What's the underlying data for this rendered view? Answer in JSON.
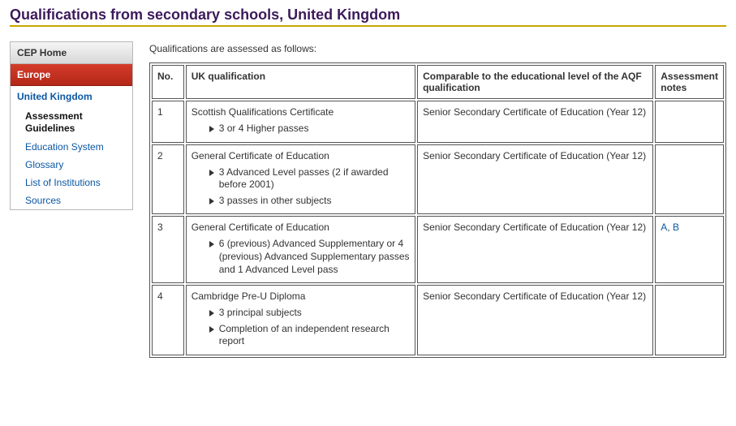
{
  "page": {
    "title": "Qualifications from secondary schools, United Kingdom",
    "intro": "Qualifications are assessed as follows:"
  },
  "sidebar": {
    "home": "CEP Home",
    "section": "Europe",
    "country": "United Kingdom",
    "items": [
      {
        "label": "Assessment Guidelines",
        "active": true
      },
      {
        "label": "Education System"
      },
      {
        "label": "Glossary"
      },
      {
        "label": "List of Institutions"
      },
      {
        "label": "Sources"
      }
    ]
  },
  "table": {
    "headers": {
      "no": "No.",
      "qual": "UK qualification",
      "comp": "Comparable to the educational level of the AQF qualification",
      "notes": "Assessment notes"
    },
    "rows": [
      {
        "no": "1",
        "title": "Scottish Qualifications Certificate",
        "bullets": [
          "3  or 4 Higher passes"
        ],
        "comp": "Senior Secondary Certificate of Education (Year 12)",
        "notes": []
      },
      {
        "no": "2",
        "title": "General Certificate of Education",
        "bullets": [
          "3 Advanced Level passes (2 if awarded before 2001)",
          "3 passes in other subjects"
        ],
        "comp": "Senior Secondary Certificate of Education (Year 12)",
        "notes": []
      },
      {
        "no": "3",
        "title": "General Certificate of Education",
        "bullets": [
          "6 (previous) Advanced Supplementary or 4 (previous) Advanced Supplementary passes and 1 Advanced Level pass"
        ],
        "comp": "Senior Secondary Certificate of Education (Year 12)",
        "notes": [
          "A",
          "B"
        ]
      },
      {
        "no": "4",
        "title": "Cambridge Pre-U Diploma",
        "bullets": [
          "3 principal subjects",
          "Completion of an independent research report"
        ],
        "comp": "Senior Secondary Certificate of Education (Year 12)",
        "notes": []
      }
    ]
  },
  "colors": {
    "heading": "#3d1a5b",
    "rule": "#c8a800",
    "link": "#0b57a4",
    "section_bg": "#c43222"
  }
}
